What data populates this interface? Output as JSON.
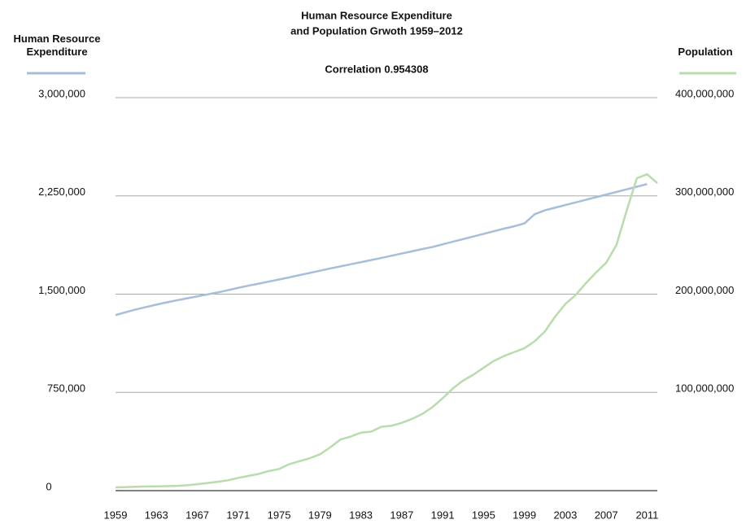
{
  "chart_data": {
    "type": "line",
    "title": [
      "Human Resource Expenditure",
      "and Population Grwoth 1959–2012"
    ],
    "subtitle": "Correlation 0.954308",
    "x": [
      1959,
      1960,
      1961,
      1962,
      1963,
      1964,
      1965,
      1966,
      1967,
      1968,
      1969,
      1970,
      1971,
      1972,
      1973,
      1974,
      1975,
      1976,
      1977,
      1978,
      1979,
      1980,
      1981,
      1982,
      1983,
      1984,
      1985,
      1986,
      1987,
      1988,
      1989,
      1990,
      1991,
      1992,
      1993,
      1994,
      1995,
      1996,
      1997,
      1998,
      1999,
      2000,
      2001,
      2002,
      2003,
      2004,
      2005,
      2006,
      2007,
      2008,
      2009,
      2010,
      2011,
      2012
    ],
    "xlim": [
      1959,
      2012
    ],
    "xticks": [
      1959,
      1963,
      1967,
      1971,
      1975,
      1979,
      1983,
      1987,
      1991,
      1995,
      1999,
      2003,
      2007,
      2011
    ],
    "ylim": [
      0,
      3000000
    ],
    "yticks": [
      0,
      {
        "value": 750000,
        "label": "750,000"
      },
      {
        "value": 1500000,
        "label": "1,500,000"
      },
      {
        "value": 2250000,
        "label": "2,250,000"
      },
      {
        "value": 3000000,
        "label": "3,000,000"
      }
    ],
    "y2lim": [
      0,
      400000000
    ],
    "y2ticks": [
      {
        "value": 100000000,
        "label": "100,000,000"
      },
      {
        "value": 200000000,
        "label": "200,000,000"
      },
      {
        "value": 300000000,
        "label": "300,000,000"
      },
      {
        "value": 400000000,
        "label": "400,000,000"
      }
    ],
    "grid": true,
    "series": [
      {
        "name": "Human Resource Expenditure",
        "color": "#a7bedb",
        "values": [
          1340000,
          1362000,
          1383000,
          1402000,
          1420000,
          1437000,
          1453000,
          1468000,
          1483000,
          1498000,
          1513000,
          1530000,
          1548000,
          1565000,
          1580000,
          1596000,
          1612000,
          1628000,
          1645000,
          1662000,
          1679000,
          1696000,
          1712000,
          1728000,
          1744000,
          1760000,
          1776000,
          1793000,
          1810000,
          1827000,
          1844000,
          1860000,
          1880000,
          1900000,
          1920000,
          1940000,
          1960000,
          1980000,
          2000000,
          2018000,
          2040000,
          2110000,
          2140000,
          2160000,
          2180000,
          2200000,
          2220000,
          2240000,
          2260000,
          2280000,
          2300000,
          2320000,
          2340000,
          null
        ]
      },
      {
        "name": "Population",
        "color": "#b8dcab",
        "axis": "y2",
        "values": [
          3300000,
          3600000,
          3900000,
          4200000,
          4400000,
          4600000,
          4900000,
          5500000,
          6500000,
          7800000,
          9000000,
          10500000,
          13000000,
          15000000,
          17000000,
          20000000,
          22000000,
          27000000,
          30000000,
          33000000,
          37000000,
          44000000,
          52000000,
          55000000,
          59000000,
          60000000,
          65000000,
          66000000,
          69000000,
          73000000,
          78000000,
          85000000,
          94000000,
          104000000,
          112000000,
          118000000,
          125000000,
          132000000,
          137000000,
          141000000,
          145000000,
          152000000,
          162000000,
          177000000,
          190000000,
          199000000,
          211000000,
          222000000,
          232000000,
          250000000,
          285000000,
          318000000,
          322000000,
          313000000
        ]
      }
    ]
  }
}
